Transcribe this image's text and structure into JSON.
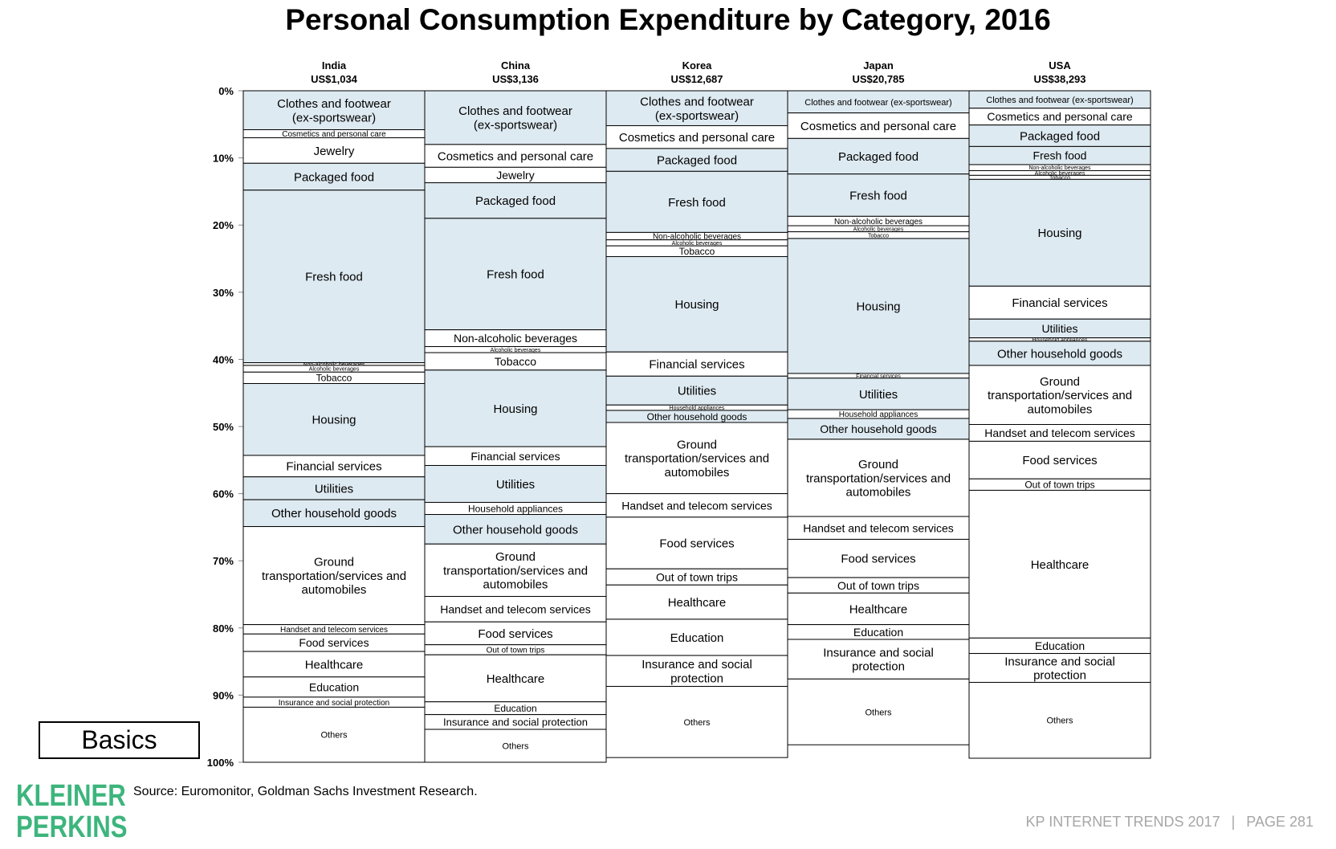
{
  "title": "Personal Consumption Expenditure by Category, 2016",
  "source": "Source: Euromonitor, Goldman Sachs Investment Research.",
  "badge": "Basics",
  "logo": [
    "KLEINER",
    "PERKINS"
  ],
  "footer": {
    "left": "KP INTERNET TRENDS 2017",
    "separator": "|",
    "right": "PAGE 281"
  },
  "colors": {
    "shaded": "#deeaf1",
    "plain": "#ffffff",
    "border": "#000000",
    "logo": "#3db57d",
    "footer": "#a6a6a6"
  },
  "chart_data": {
    "type": "bar",
    "stacked": true,
    "ylim": [
      0,
      100
    ],
    "y_unit": "%",
    "y_ticks": [
      "0%",
      "10%",
      "20%",
      "30%",
      "40%",
      "50%",
      "60%",
      "70%",
      "80%",
      "90%",
      "100%"
    ],
    "columns": [
      {
        "country": "India",
        "gdp": "US$1,034",
        "segments": [
          {
            "label": "Clothes and footwear (ex-sportswear)",
            "value": 5.8,
            "shaded": true
          },
          {
            "label": "Cosmetics and personal care",
            "value": 1.2,
            "shaded": false
          },
          {
            "label": "Jewelry",
            "value": 3.8,
            "shaded": false
          },
          {
            "label": "Packaged food",
            "value": 4.0,
            "shaded": true
          },
          {
            "label": "Fresh food",
            "value": 25.7,
            "shaded": true
          },
          {
            "label": "Non-alcoholic beverages",
            "value": 0.4,
            "shaded": false
          },
          {
            "label": "Alcoholic beverages",
            "value": 1.0,
            "shaded": false
          },
          {
            "label": "Tobacco",
            "value": 1.7,
            "shaded": false
          },
          {
            "label": "Housing",
            "value": 10.7,
            "shaded": true
          },
          {
            "label": "Financial services",
            "value": 3.2,
            "shaded": false
          },
          {
            "label": "Utilities",
            "value": 3.4,
            "shaded": true
          },
          {
            "label": "Other household goods",
            "value": 4.0,
            "shaded": true
          },
          {
            "label": "Ground transportation/services and automobiles",
            "value": 14.6,
            "shaded": false
          },
          {
            "label": "Handset and telecom services",
            "value": 1.4,
            "shaded": false
          },
          {
            "label": "Food services",
            "value": 2.6,
            "shaded": false
          },
          {
            "label": "Healthcare",
            "value": 3.8,
            "shaded": false
          },
          {
            "label": "Education",
            "value": 3.0,
            "shaded": false
          },
          {
            "label": "Insurance and social protection",
            "value": 1.5,
            "shaded": false
          },
          {
            "label": "Others",
            "value": 8.2,
            "shaded": false
          }
        ]
      },
      {
        "country": "China",
        "gdp": "US$3,136",
        "segments": [
          {
            "label": "Clothes and footwear (ex-sportswear)",
            "value": 8.0,
            "shaded": true
          },
          {
            "label": "Cosmetics and personal care",
            "value": 3.4,
            "shaded": false
          },
          {
            "label": "Jewelry",
            "value": 2.3,
            "shaded": false
          },
          {
            "label": "Packaged food",
            "value": 5.3,
            "shaded": true
          },
          {
            "label": "Fresh food",
            "value": 16.6,
            "shaded": true
          },
          {
            "label": "Non-alcoholic beverages",
            "value": 2.5,
            "shaded": false
          },
          {
            "label": "Alcoholic beverages",
            "value": 0.9,
            "shaded": false
          },
          {
            "label": "Tobacco",
            "value": 2.6,
            "shaded": false
          },
          {
            "label": "Housing",
            "value": 11.4,
            "shaded": true
          },
          {
            "label": "Financial services",
            "value": 2.8,
            "shaded": false
          },
          {
            "label": "Utilities",
            "value": 5.5,
            "shaded": true
          },
          {
            "label": "Household appliances",
            "value": 1.8,
            "shaded": false
          },
          {
            "label": "Other household goods",
            "value": 4.4,
            "shaded": true
          },
          {
            "label": "Ground transportation/services and automobiles",
            "value": 7.8,
            "shaded": false
          },
          {
            "label": "Handset and telecom services",
            "value": 3.8,
            "shaded": false
          },
          {
            "label": "Food services",
            "value": 3.4,
            "shaded": false
          },
          {
            "label": "Out of town trips",
            "value": 1.5,
            "shaded": false
          },
          {
            "label": "Healthcare",
            "value": 7.0,
            "shaded": false
          },
          {
            "label": "Education",
            "value": 1.9,
            "shaded": false
          },
          {
            "label": "Insurance and social protection",
            "value": 2.2,
            "shaded": false
          },
          {
            "label": "Others",
            "value": 4.9,
            "shaded": false
          }
        ]
      },
      {
        "country": "Korea",
        "gdp": "US$12,687",
        "segments": [
          {
            "label": "Clothes and footwear (ex-sportswear)",
            "value": 5.2,
            "shaded": true
          },
          {
            "label": "Cosmetics and personal care",
            "value": 3.4,
            "shaded": false
          },
          {
            "label": "Packaged food",
            "value": 3.4,
            "shaded": true
          },
          {
            "label": "Fresh food",
            "value": 9.1,
            "shaded": true
          },
          {
            "label": "Non-alcoholic beverages",
            "value": 1.1,
            "shaded": false
          },
          {
            "label": "Alcoholic beverages",
            "value": 0.9,
            "shaded": false
          },
          {
            "label": "Tobacco",
            "value": 1.6,
            "shaded": false
          },
          {
            "label": "Housing",
            "value": 14.2,
            "shaded": true
          },
          {
            "label": "Financial services",
            "value": 3.6,
            "shaded": false
          },
          {
            "label": "Utilities",
            "value": 4.3,
            "shaded": true
          },
          {
            "label": "Household appliances",
            "value": 0.8,
            "shaded": false
          },
          {
            "label": "Other household goods",
            "value": 1.8,
            "shaded": true
          },
          {
            "label": "Ground transportation/services and automobiles",
            "value": 10.6,
            "shaded": false
          },
          {
            "label": "Handset and telecom services",
            "value": 3.5,
            "shaded": false
          },
          {
            "label": "Food services",
            "value": 7.7,
            "shaded": false
          },
          {
            "label": "Out of town trips",
            "value": 2.4,
            "shaded": false
          },
          {
            "label": "Healthcare",
            "value": 5.1,
            "shaded": false
          },
          {
            "label": "Education",
            "value": 5.4,
            "shaded": false
          },
          {
            "label": "Insurance and social protection",
            "value": 4.6,
            "shaded": false
          },
          {
            "label": "Others",
            "value": 10.6,
            "shaded": false
          }
        ]
      },
      {
        "country": "Japan",
        "gdp": "US$20,785",
        "segments": [
          {
            "label": "Clothes and footwear (ex-sportswear)",
            "value": 3.3,
            "shaded": true
          },
          {
            "label": "Cosmetics and personal care",
            "value": 3.8,
            "shaded": false
          },
          {
            "label": "Packaged food",
            "value": 5.3,
            "shaded": true
          },
          {
            "label": "Fresh food",
            "value": 6.3,
            "shaded": true
          },
          {
            "label": "Non-alcoholic beverages",
            "value": 1.4,
            "shaded": false
          },
          {
            "label": "Alcoholic beverages",
            "value": 0.9,
            "shaded": false
          },
          {
            "label": "Tobacco",
            "value": 1.0,
            "shaded": false
          },
          {
            "label": "Housing",
            "value": 20.1,
            "shaded": true
          },
          {
            "label": "Financial services",
            "value": 0.7,
            "shaded": false
          },
          {
            "label": "Utilities",
            "value": 4.7,
            "shaded": true
          },
          {
            "label": "Household appliances",
            "value": 1.3,
            "shaded": false
          },
          {
            "label": "Other household goods",
            "value": 3.1,
            "shaded": true
          },
          {
            "label": "Ground transportation/services and automobiles",
            "value": 11.5,
            "shaded": false
          },
          {
            "label": "Handset and telecom services",
            "value": 3.4,
            "shaded": false
          },
          {
            "label": "Food services",
            "value": 5.7,
            "shaded": false
          },
          {
            "label": "Out of town trips",
            "value": 2.3,
            "shaded": false
          },
          {
            "label": "Healthcare",
            "value": 4.7,
            "shaded": false
          },
          {
            "label": "Education",
            "value": 2.2,
            "shaded": false
          },
          {
            "label": "Insurance and social protection",
            "value": 5.9,
            "shaded": false
          },
          {
            "label": "Others",
            "value": 9.8,
            "shaded": false
          }
        ]
      },
      {
        "country": "USA",
        "gdp": "US$38,293",
        "segments": [
          {
            "label": "Clothes and footwear (ex-sportswear)",
            "value": 2.6,
            "shaded": true
          },
          {
            "label": "Cosmetics and personal care",
            "value": 2.5,
            "shaded": false
          },
          {
            "label": "Packaged food",
            "value": 3.2,
            "shaded": true
          },
          {
            "label": "Fresh food",
            "value": 2.7,
            "shaded": true
          },
          {
            "label": "Non-alcoholic beverages",
            "value": 0.9,
            "shaded": false
          },
          {
            "label": "Alcoholic beverages",
            "value": 0.7,
            "shaded": false
          },
          {
            "label": "Tobacco",
            "value": 0.6,
            "shaded": false
          },
          {
            "label": "Housing",
            "value": 15.9,
            "shaded": true
          },
          {
            "label": "Financial services",
            "value": 4.9,
            "shaded": false
          },
          {
            "label": "Utilities",
            "value": 2.8,
            "shaded": true
          },
          {
            "label": "Household appliances",
            "value": 0.5,
            "shaded": false
          },
          {
            "label": "Other household goods",
            "value": 3.6,
            "shaded": true
          },
          {
            "label": "Ground transportation/services and automobiles",
            "value": 8.8,
            "shaded": false
          },
          {
            "label": "Handset and telecom services",
            "value": 2.5,
            "shaded": false
          },
          {
            "label": "Food services",
            "value": 5.6,
            "shaded": false
          },
          {
            "label": "Out of town trips",
            "value": 1.7,
            "shaded": false
          },
          {
            "label": "Healthcare",
            "value": 22.0,
            "shaded": false
          },
          {
            "label": "Education",
            "value": 2.3,
            "shaded": false
          },
          {
            "label": "Insurance and social protection",
            "value": 4.3,
            "shaded": false
          },
          {
            "label": "Others",
            "value": 11.3,
            "shaded": false
          }
        ]
      }
    ]
  }
}
